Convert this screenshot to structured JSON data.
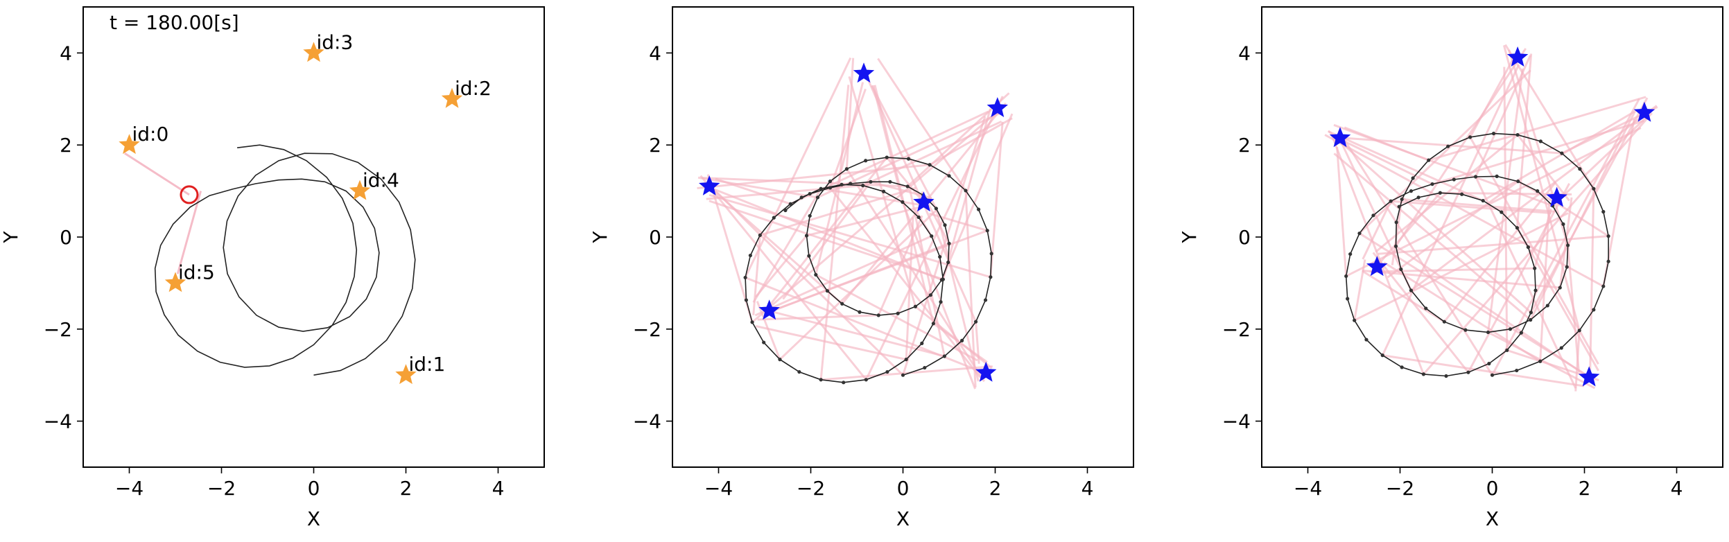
{
  "chart_data": [
    {
      "type": "scatter",
      "title": "",
      "annotation": "t = 180.00[s]",
      "xlabel": "X",
      "ylabel": "Y",
      "xlim": [
        -5,
        5
      ],
      "ylim": [
        -5,
        5
      ],
      "xticks": [
        -4,
        -2,
        0,
        2,
        4
      ],
      "yticks": [
        -4,
        -2,
        0,
        2,
        4
      ],
      "xtick_labels": [
        "−4",
        "−2",
        "0",
        "2",
        "4"
      ],
      "ytick_labels": [
        "−4",
        "−2",
        "0",
        "2",
        "4"
      ],
      "grid": false,
      "landmark_color": "#f5a035",
      "landmarks": [
        {
          "label": "id:0",
          "x": -4,
          "y": 2
        },
        {
          "label": "id:1",
          "x": 2,
          "y": -3
        },
        {
          "label": "id:2",
          "x": 3,
          "y": 3
        },
        {
          "label": "id:3",
          "x": 0,
          "y": 4
        },
        {
          "label": "id:4",
          "x": 1,
          "y": 1
        },
        {
          "label": "id:5",
          "x": -3,
          "y": -1
        }
      ],
      "robot": {
        "x": -2.7,
        "y": 0.92,
        "color": "#e02020"
      },
      "observation_color": "#f4b5c2",
      "observation_lines": [
        {
          "from": [
            -2.7,
            0.92
          ],
          "to": [
            -4.1,
            1.82
          ]
        },
        {
          "from": [
            -2.45,
            1.0
          ],
          "to": [
            -2.95,
            -0.8
          ]
        }
      ],
      "trajectory": [
        [
          0.0,
          -3.0
        ],
        [
          0.58,
          -2.9
        ],
        [
          1.12,
          -2.64
        ],
        [
          1.58,
          -2.24
        ],
        [
          1.92,
          -1.72
        ],
        [
          2.14,
          -1.12
        ],
        [
          2.2,
          -0.49
        ],
        [
          2.1,
          0.16
        ],
        [
          1.85,
          0.76
        ],
        [
          1.46,
          1.26
        ],
        [
          0.96,
          1.62
        ],
        [
          0.4,
          1.81
        ],
        [
          -0.2,
          1.82
        ],
        [
          -0.76,
          1.66
        ],
        [
          -1.26,
          1.34
        ],
        [
          -1.64,
          0.89
        ],
        [
          -1.88,
          0.35
        ],
        [
          -1.96,
          -0.23
        ],
        [
          -1.87,
          -0.8
        ],
        [
          -1.62,
          -1.3
        ],
        [
          -1.24,
          -1.7
        ],
        [
          -0.76,
          -1.96
        ],
        [
          -0.23,
          -2.05
        ],
        [
          0.3,
          -1.97
        ],
        [
          0.78,
          -1.73
        ],
        [
          1.14,
          -1.35
        ],
        [
          1.36,
          -0.87
        ],
        [
          1.42,
          -0.34
        ],
        [
          1.32,
          0.19
        ],
        [
          1.07,
          0.65
        ],
        [
          0.7,
          1.0
        ],
        [
          0.24,
          1.2
        ],
        [
          -0.26,
          1.26
        ],
        [
          -0.76,
          1.24
        ],
        [
          -1.26,
          1.16
        ],
        [
          -1.76,
          1.04
        ],
        [
          -2.26,
          0.9
        ],
        [
          -2.68,
          0.65
        ],
        [
          -3.05,
          0.28
        ],
        [
          -3.32,
          -0.18
        ],
        [
          -3.44,
          -0.68
        ],
        [
          -3.42,
          -1.19
        ],
        [
          -3.24,
          -1.69
        ],
        [
          -2.94,
          -2.13
        ],
        [
          -2.52,
          -2.48
        ],
        [
          -2.03,
          -2.72
        ],
        [
          -1.5,
          -2.83
        ],
        [
          -0.96,
          -2.8
        ],
        [
          -0.45,
          -2.63
        ],
        [
          0.0,
          -2.34
        ],
        [
          0.4,
          -1.92
        ],
        [
          0.7,
          -1.42
        ],
        [
          0.88,
          -0.86
        ],
        [
          0.93,
          -0.28
        ],
        [
          0.85,
          0.3
        ],
        [
          0.62,
          0.84
        ],
        [
          0.28,
          1.3
        ],
        [
          -0.16,
          1.66
        ],
        [
          -0.65,
          1.9
        ],
        [
          -1.17,
          2.0
        ],
        [
          -1.66,
          1.94
        ]
      ]
    },
    {
      "type": "scatter",
      "title": "",
      "xlabel": "X",
      "ylabel": "Y",
      "xlim": [
        -5,
        5
      ],
      "ylim": [
        -5,
        5
      ],
      "xticks": [
        -4,
        -2,
        0,
        2,
        4
      ],
      "yticks": [
        -4,
        -2,
        0,
        2,
        4
      ],
      "xtick_labels": [
        "−4",
        "−2",
        "0",
        "2",
        "4"
      ],
      "ytick_labels": [
        "−4",
        "−2",
        "0",
        "2",
        "4"
      ],
      "grid": false,
      "landmark_color": "#1414f0",
      "landmarks": [
        {
          "x": -4.2,
          "y": 1.1
        },
        {
          "x": -2.9,
          "y": -1.6
        },
        {
          "x": -0.85,
          "y": 3.55
        },
        {
          "x": 2.05,
          "y": 2.8
        },
        {
          "x": 0.45,
          "y": 0.75
        },
        {
          "x": 1.8,
          "y": -2.95
        }
      ],
      "observation_color": "#f4b5c2",
      "trajectory": [
        [
          0.0,
          -3.0
        ],
        [
          0.47,
          -2.84
        ],
        [
          0.9,
          -2.59
        ],
        [
          1.28,
          -2.25
        ],
        [
          1.58,
          -1.84
        ],
        [
          1.79,
          -1.37
        ],
        [
          1.9,
          -0.87
        ],
        [
          1.92,
          -0.36
        ],
        [
          1.83,
          0.14
        ],
        [
          1.64,
          0.6
        ],
        [
          1.36,
          1.01
        ],
        [
          1.0,
          1.33
        ],
        [
          0.58,
          1.57
        ],
        [
          0.12,
          1.7
        ],
        [
          -0.35,
          1.73
        ],
        [
          -0.81,
          1.66
        ],
        [
          -1.22,
          1.48
        ],
        [
          -1.58,
          1.21
        ],
        [
          -1.85,
          0.86
        ],
        [
          -2.02,
          0.46
        ],
        [
          -2.09,
          0.03
        ],
        [
          -2.04,
          -0.41
        ],
        [
          -1.89,
          -0.82
        ],
        [
          -1.64,
          -1.17
        ],
        [
          -1.32,
          -1.45
        ],
        [
          -0.94,
          -1.63
        ],
        [
          -0.53,
          -1.7
        ],
        [
          -0.11,
          -1.66
        ],
        [
          0.27,
          -1.51
        ],
        [
          0.6,
          -1.26
        ],
        [
          0.84,
          -0.93
        ],
        [
          0.98,
          -0.55
        ],
        [
          1.0,
          -0.14
        ],
        [
          0.91,
          0.26
        ],
        [
          0.72,
          0.62
        ],
        [
          0.44,
          0.91
        ],
        [
          0.1,
          1.1
        ],
        [
          -0.28,
          1.2
        ],
        [
          -0.7,
          1.2
        ],
        [
          -1.14,
          1.16
        ],
        [
          -1.58,
          1.07
        ],
        [
          -2.02,
          0.94
        ],
        [
          -2.44,
          0.72
        ],
        [
          -2.8,
          0.42
        ],
        [
          -3.1,
          0.04
        ],
        [
          -3.31,
          -0.4
        ],
        [
          -3.42,
          -0.88
        ],
        [
          -3.4,
          -1.37
        ],
        [
          -3.27,
          -1.85
        ],
        [
          -3.02,
          -2.29
        ],
        [
          -2.67,
          -2.66
        ],
        [
          -2.25,
          -2.93
        ],
        [
          -1.78,
          -3.1
        ],
        [
          -1.29,
          -3.16
        ],
        [
          -0.8,
          -3.1
        ],
        [
          -0.34,
          -2.93
        ],
        [
          0.07,
          -2.66
        ],
        [
          0.41,
          -2.31
        ],
        [
          0.66,
          -1.88
        ],
        [
          0.82,
          -1.41
        ],
        [
          0.87,
          -0.92
        ],
        [
          0.8,
          -0.43
        ],
        [
          0.62,
          0.02
        ],
        [
          0.34,
          0.43
        ],
        [
          -0.01,
          0.76
        ],
        [
          -0.42,
          0.99
        ],
        [
          -0.87,
          1.12
        ],
        [
          -1.33,
          1.14
        ],
        [
          -1.78,
          1.05
        ],
        [
          -2.2,
          0.86
        ],
        [
          -2.55,
          0.58
        ]
      ],
      "trajectory_points": true,
      "fan_origins": [
        [
          0.0,
          -3.0
        ],
        [
          0.9,
          -2.59
        ],
        [
          1.58,
          -1.84
        ],
        [
          1.9,
          -0.87
        ],
        [
          1.83,
          0.14
        ],
        [
          1.36,
          1.01
        ],
        [
          0.58,
          1.57
        ],
        [
          -0.35,
          1.73
        ],
        [
          -1.22,
          1.48
        ],
        [
          -1.85,
          0.86
        ],
        [
          -2.09,
          0.03
        ],
        [
          -1.89,
          -0.82
        ],
        [
          -1.32,
          -1.45
        ],
        [
          -0.53,
          -1.7
        ],
        [
          0.27,
          -1.51
        ],
        [
          0.84,
          -0.93
        ],
        [
          1.0,
          -0.14
        ],
        [
          0.72,
          0.62
        ],
        [
          0.1,
          1.1
        ],
        [
          -0.7,
          1.2
        ],
        [
          -1.58,
          1.07
        ],
        [
          -2.44,
          0.72
        ],
        [
          -3.1,
          0.04
        ],
        [
          -3.42,
          -0.88
        ],
        [
          -3.27,
          -1.85
        ],
        [
          -2.67,
          -2.66
        ],
        [
          -1.78,
          -3.1
        ],
        [
          -0.8,
          -3.1
        ],
        [
          0.07,
          -2.66
        ],
        [
          0.66,
          -1.88
        ],
        [
          0.87,
          -0.92
        ],
        [
          0.62,
          0.02
        ],
        [
          -0.01,
          0.76
        ],
        [
          -0.87,
          1.12
        ],
        [
          -1.78,
          1.05
        ]
      ],
      "fan_jitter": 0.35
    },
    {
      "type": "scatter",
      "title": "",
      "xlabel": "X",
      "ylabel": "Y",
      "xlim": [
        -5,
        5
      ],
      "ylim": [
        -5,
        5
      ],
      "xticks": [
        -4,
        -2,
        0,
        2,
        4
      ],
      "yticks": [
        -4,
        -2,
        0,
        2,
        4
      ],
      "xtick_labels": [
        "−4",
        "−2",
        "0",
        "2",
        "4"
      ],
      "ytick_labels": [
        "−4",
        "−2",
        "0",
        "2",
        "4"
      ],
      "grid": false,
      "landmark_color": "#1414f0",
      "landmarks": [
        {
          "x": -3.3,
          "y": 2.15
        },
        {
          "x": -2.5,
          "y": -0.65
        },
        {
          "x": 0.55,
          "y": 3.9
        },
        {
          "x": 3.3,
          "y": 2.7
        },
        {
          "x": 1.4,
          "y": 0.85
        },
        {
          "x": 2.1,
          "y": -3.05
        }
      ],
      "observation_color": "#f4b5c2",
      "trajectory": [
        [
          0.0,
          -3.0
        ],
        [
          0.53,
          -2.9
        ],
        [
          1.04,
          -2.7
        ],
        [
          1.5,
          -2.41
        ],
        [
          1.89,
          -2.03
        ],
        [
          2.2,
          -1.58
        ],
        [
          2.41,
          -1.07
        ],
        [
          2.52,
          -0.53
        ],
        [
          2.52,
          0.02
        ],
        [
          2.41,
          0.55
        ],
        [
          2.2,
          1.05
        ],
        [
          1.9,
          1.48
        ],
        [
          1.51,
          1.82
        ],
        [
          1.05,
          2.08
        ],
        [
          0.55,
          2.22
        ],
        [
          0.03,
          2.25
        ],
        [
          -0.48,
          2.17
        ],
        [
          -0.96,
          1.97
        ],
        [
          -1.38,
          1.67
        ],
        [
          -1.72,
          1.28
        ],
        [
          -1.96,
          0.82
        ],
        [
          -2.08,
          0.32
        ],
        [
          -2.09,
          -0.2
        ],
        [
          -1.98,
          -0.7
        ],
        [
          -1.76,
          -1.16
        ],
        [
          -1.44,
          -1.55
        ],
        [
          -1.04,
          -1.84
        ],
        [
          -0.58,
          -2.02
        ],
        [
          -0.09,
          -2.07
        ],
        [
          0.39,
          -2.0
        ],
        [
          0.83,
          -1.8
        ],
        [
          1.2,
          -1.49
        ],
        [
          1.47,
          -1.1
        ],
        [
          1.62,
          -0.65
        ],
        [
          1.64,
          -0.18
        ],
        [
          1.54,
          0.28
        ],
        [
          1.31,
          0.68
        ],
        [
          0.98,
          1.0
        ],
        [
          0.56,
          1.21
        ],
        [
          0.1,
          1.32
        ],
        [
          -0.36,
          1.31
        ],
        [
          -0.83,
          1.25
        ],
        [
          -1.3,
          1.15
        ],
        [
          -1.76,
          1.0
        ],
        [
          -2.2,
          0.78
        ],
        [
          -2.58,
          0.47
        ],
        [
          -2.88,
          0.08
        ],
        [
          -3.08,
          -0.37
        ],
        [
          -3.17,
          -0.85
        ],
        [
          -3.14,
          -1.34
        ],
        [
          -2.99,
          -1.81
        ],
        [
          -2.73,
          -2.23
        ],
        [
          -2.38,
          -2.57
        ],
        [
          -1.96,
          -2.83
        ],
        [
          -1.49,
          -2.98
        ],
        [
          -1.0,
          -3.02
        ],
        [
          -0.52,
          -2.94
        ],
        [
          -0.07,
          -2.75
        ],
        [
          0.32,
          -2.46
        ],
        [
          0.63,
          -2.08
        ],
        [
          0.84,
          -1.64
        ],
        [
          0.94,
          -1.16
        ],
        [
          0.92,
          -0.68
        ],
        [
          0.78,
          -0.22
        ],
        [
          0.54,
          0.2
        ],
        [
          0.2,
          0.54
        ],
        [
          -0.2,
          0.79
        ],
        [
          -0.66,
          0.93
        ],
        [
          -1.13,
          0.96
        ],
        [
          -1.6,
          0.86
        ],
        [
          -2.02,
          0.66
        ]
      ],
      "trajectory_points": true,
      "fan_origins": [
        [
          0.0,
          -3.0
        ],
        [
          1.04,
          -2.7
        ],
        [
          1.89,
          -2.03
        ],
        [
          2.41,
          -1.07
        ],
        [
          2.52,
          0.02
        ],
        [
          2.2,
          1.05
        ],
        [
          1.51,
          1.82
        ],
        [
          0.55,
          2.22
        ],
        [
          -0.48,
          2.17
        ],
        [
          -1.38,
          1.67
        ],
        [
          -1.96,
          0.82
        ],
        [
          -2.09,
          -0.2
        ],
        [
          -1.76,
          -1.16
        ],
        [
          -1.04,
          -1.84
        ],
        [
          -0.09,
          -2.07
        ],
        [
          0.83,
          -1.8
        ],
        [
          1.47,
          -1.1
        ],
        [
          1.64,
          -0.18
        ],
        [
          1.31,
          0.68
        ],
        [
          0.56,
          1.21
        ],
        [
          -0.36,
          1.31
        ],
        [
          -1.3,
          1.15
        ],
        [
          -2.2,
          0.78
        ],
        [
          -2.88,
          0.08
        ],
        [
          -3.17,
          -0.85
        ],
        [
          -2.99,
          -1.81
        ],
        [
          -2.38,
          -2.57
        ],
        [
          -1.49,
          -2.98
        ],
        [
          -0.52,
          -2.94
        ],
        [
          0.32,
          -2.46
        ],
        [
          0.84,
          -1.64
        ],
        [
          0.92,
          -0.68
        ],
        [
          0.54,
          0.2
        ],
        [
          -0.2,
          0.79
        ],
        [
          -1.13,
          0.96
        ]
      ],
      "fan_jitter": 0.35
    }
  ]
}
